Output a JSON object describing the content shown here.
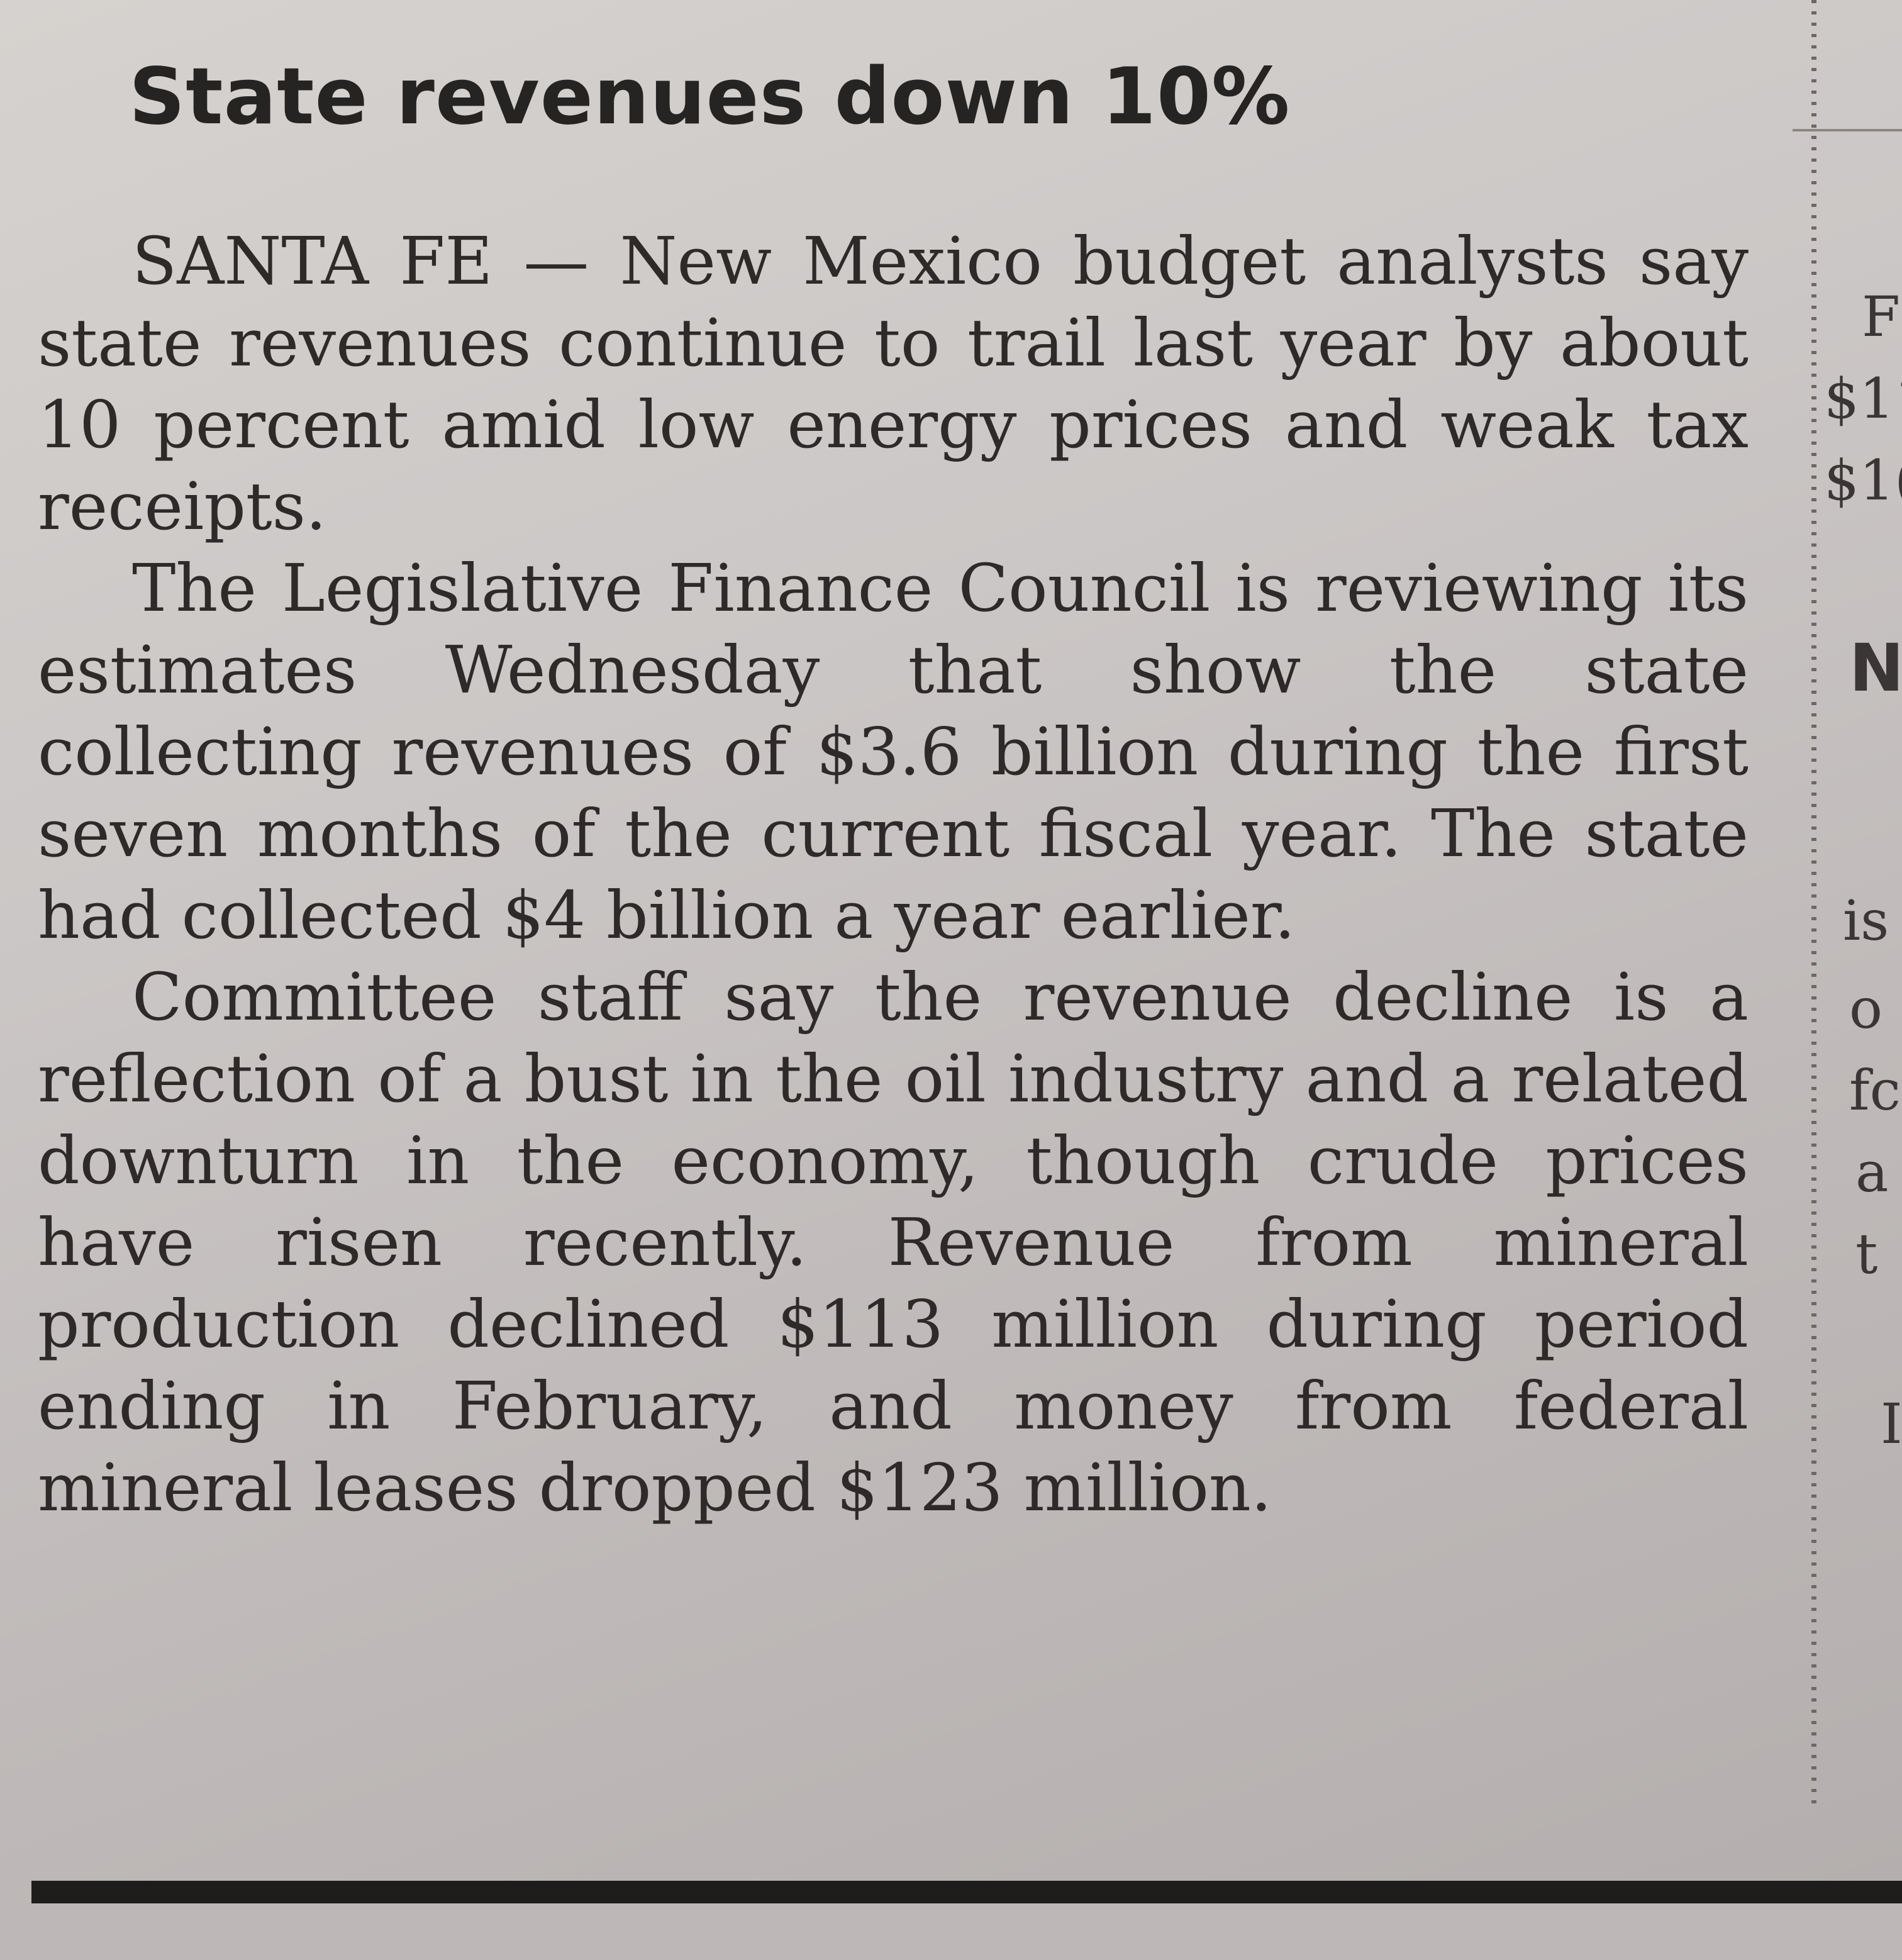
{
  "article": {
    "headline": "State revenues down 10%",
    "dateline": "SANTA FE",
    "dateline_sep": " — ",
    "paragraph1_rest": "New Mexico budget analysts say state revenues continue to trail last year by about 10 percent amid low energy prices and weak tax receipts.",
    "paragraph2": "The Legislative Finance Council is reviewing its estimates Wednesday that show the state collecting revenues of $3.6 billion during the first seven months of the current fiscal year. The state had collected $4 billion a year earlier.",
    "paragraph3": "Committee staff say the revenue decline is a reflection of a bust in the oil industry and a related downturn in the economy, though crude prices have risen recently. Revenue from mineral production declined $113 million during period ending in February, and money from federal mineral leases dropped $123 million."
  },
  "adjacent_column": {
    "fragments": [
      "F",
      "$11",
      "$1(",
      "N",
      "is",
      "o",
      "fc",
      "a",
      "t",
      "I"
    ]
  }
}
